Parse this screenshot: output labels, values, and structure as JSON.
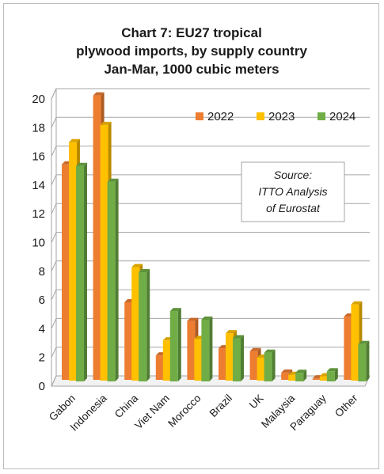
{
  "chart_data": {
    "type": "bar",
    "title": [
      "Chart 7: EU27 tropical",
      "plywood imports, by supply country",
      "Jan-Mar, 1000 cubic meters"
    ],
    "categories": [
      "Gabon",
      "Indonesia",
      "China",
      "Viet Nam",
      "Morocco",
      "Brazil",
      "UK",
      "Malaysia",
      "Paraguay",
      "Other"
    ],
    "series": [
      {
        "name": "2022",
        "color": "#ed7d31",
        "values": [
          15.0,
          19.8,
          5.4,
          1.7,
          4.1,
          2.2,
          2.0,
          0.5,
          0.1,
          4.4
        ]
      },
      {
        "name": "2023",
        "color": "#ffc000",
        "values": [
          16.6,
          17.8,
          7.9,
          2.8,
          2.9,
          3.3,
          1.6,
          0.4,
          0.3,
          5.3
        ]
      },
      {
        "name": "2024",
        "color": "#70ad47",
        "values": [
          15.0,
          13.9,
          7.6,
          4.9,
          4.3,
          3.0,
          2.0,
          0.6,
          0.7,
          2.6
        ]
      }
    ],
    "yticks": [
      "0",
      "2",
      "4",
      "6",
      "8",
      "10",
      "12",
      "14",
      "16",
      "18",
      "20"
    ],
    "ylim": [
      0,
      20
    ],
    "grid": true,
    "legend_position": "top-right",
    "annotation": [
      "Source:",
      "ITTO Analysis",
      "of Eurostat"
    ]
  }
}
